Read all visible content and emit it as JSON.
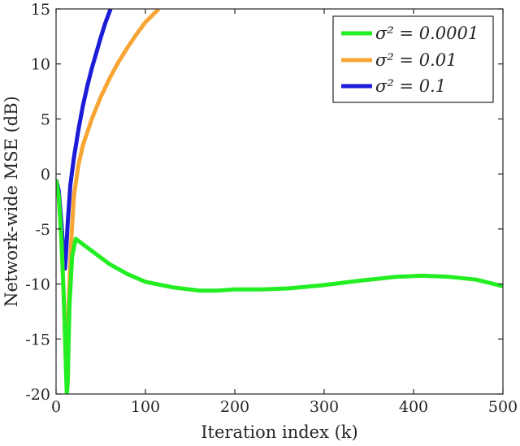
{
  "chart_data": {
    "type": "line",
    "title": "",
    "xlabel": "Iteration index (k)",
    "ylabel": "Network-wide MSE (dB)",
    "xlim": [
      0,
      500
    ],
    "ylim": [
      -20,
      15
    ],
    "x_ticks": [
      "0",
      "100",
      "200",
      "300",
      "400",
      "500"
    ],
    "y_ticks": [
      "-20",
      "-15",
      "-10",
      "-5",
      "0",
      "5",
      "10",
      "15"
    ],
    "grid": false,
    "legend_position": "top-right",
    "series": [
      {
        "name": "σ² = 0.0001",
        "color": "#22ee22",
        "points": [
          [
            0,
            -0.5
          ],
          [
            3,
            -2.0
          ],
          [
            6,
            -6.0
          ],
          [
            9,
            -12.0
          ],
          [
            11,
            -17.5
          ],
          [
            12,
            -20.0
          ],
          [
            13,
            -19.0
          ],
          [
            15,
            -12.0
          ],
          [
            18,
            -7.5
          ],
          [
            22,
            -5.9
          ],
          [
            40,
            -7.0
          ],
          [
            60,
            -8.2
          ],
          [
            80,
            -9.1
          ],
          [
            100,
            -9.8
          ],
          [
            130,
            -10.3
          ],
          [
            160,
            -10.6
          ],
          [
            180,
            -10.6
          ],
          [
            200,
            -10.5
          ],
          [
            230,
            -10.5
          ],
          [
            260,
            -10.4
          ],
          [
            300,
            -10.1
          ],
          [
            340,
            -9.7
          ],
          [
            380,
            -9.35
          ],
          [
            410,
            -9.25
          ],
          [
            440,
            -9.35
          ],
          [
            470,
            -9.6
          ],
          [
            500,
            -10.2
          ]
        ]
      },
      {
        "name": "σ² = 0.01",
        "color": "#f7a635",
        "points": [
          [
            0,
            -0.5
          ],
          [
            3,
            -2.0
          ],
          [
            6,
            -6.0
          ],
          [
            9,
            -12.0
          ],
          [
            11,
            -17.0
          ],
          [
            12,
            -18.0
          ],
          [
            14,
            -12.0
          ],
          [
            17,
            -6.0
          ],
          [
            20,
            -2.0
          ],
          [
            25,
            0.8
          ],
          [
            30,
            2.6
          ],
          [
            40,
            5.0
          ],
          [
            50,
            7.0
          ],
          [
            60,
            8.7
          ],
          [
            70,
            10.2
          ],
          [
            80,
            11.5
          ],
          [
            90,
            12.7
          ],
          [
            100,
            13.8
          ],
          [
            115,
            15.0
          ]
        ]
      },
      {
        "name": "σ² = 0.1",
        "color": "#1b1bd8",
        "points": [
          [
            0,
            -0.5
          ],
          [
            3,
            -1.5
          ],
          [
            6,
            -4.5
          ],
          [
            9,
            -8.0
          ],
          [
            10,
            -8.6
          ],
          [
            11,
            -7.5
          ],
          [
            13,
            -4.5
          ],
          [
            16,
            -1.0
          ],
          [
            20,
            1.5
          ],
          [
            25,
            4.0
          ],
          [
            30,
            6.2
          ],
          [
            35,
            8.0
          ],
          [
            40,
            9.6
          ],
          [
            45,
            11.0
          ],
          [
            50,
            12.4
          ],
          [
            55,
            13.7
          ],
          [
            61,
            15.0
          ]
        ]
      }
    ]
  }
}
